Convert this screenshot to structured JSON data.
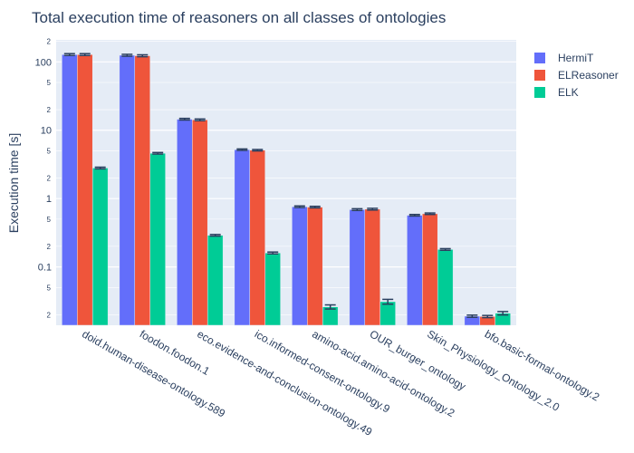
{
  "chart_data": {
    "type": "bar",
    "title": "Total execution time of reasoners on all classes of ontologies",
    "xlabel": "",
    "ylabel": "Execution time [s]",
    "yscale": "log",
    "ylim": [
      0.014,
      210
    ],
    "y_major_ticks": [
      {
        "v": 0.1,
        "label": "0.1"
      },
      {
        "v": 1,
        "label": "1"
      },
      {
        "v": 10,
        "label": "10"
      },
      {
        "v": 100,
        "label": "100"
      }
    ],
    "y_minor_ticks": [
      {
        "v": 0.02,
        "label": "2"
      },
      {
        "v": 0.05,
        "label": "5"
      },
      {
        "v": 0.2,
        "label": "2"
      },
      {
        "v": 0.5,
        "label": "5"
      },
      {
        "v": 2,
        "label": "2"
      },
      {
        "v": 5,
        "label": "5"
      },
      {
        "v": 20,
        "label": "2"
      },
      {
        "v": 50,
        "label": "5"
      },
      {
        "v": 200,
        "label": "2"
      }
    ],
    "legend_position": "top-right",
    "categories": [
      "doid.human-disease-ontology.589",
      "foodon.foodon.1",
      "eco.evidence-and-conclusion-ontology.49",
      "ico.informed-consent-ontology.9",
      "amino-acid.amino-acid-ontology.2",
      "OUR_burger_ontology",
      "Skin_Physiology_Ontology_2.0",
      "bfo.basic-formal-ontology.2"
    ],
    "series": [
      {
        "name": "HermiT",
        "color": "#636efa",
        "values": [
          128,
          125,
          14.5,
          5.2,
          0.76,
          0.69,
          0.57,
          0.019
        ],
        "errors": [
          4,
          4,
          0.4,
          0.12,
          0.02,
          0.02,
          0.015,
          0.0007
        ]
      },
      {
        "name": "ELReasoner",
        "color": "#ef553b",
        "values": [
          128,
          123,
          14.2,
          5.1,
          0.75,
          0.7,
          0.6,
          0.0188
        ],
        "errors": [
          4,
          4,
          0.4,
          0.12,
          0.02,
          0.02,
          0.015,
          0.0007
        ]
      },
      {
        "name": "ELK",
        "color": "#00cc96",
        "values": [
          2.8,
          4.6,
          0.29,
          0.16,
          0.026,
          0.031,
          0.18,
          0.021
        ],
        "errors": [
          0.08,
          0.12,
          0.008,
          0.005,
          0.0018,
          0.0025,
          0.005,
          0.0012
        ]
      }
    ]
  }
}
